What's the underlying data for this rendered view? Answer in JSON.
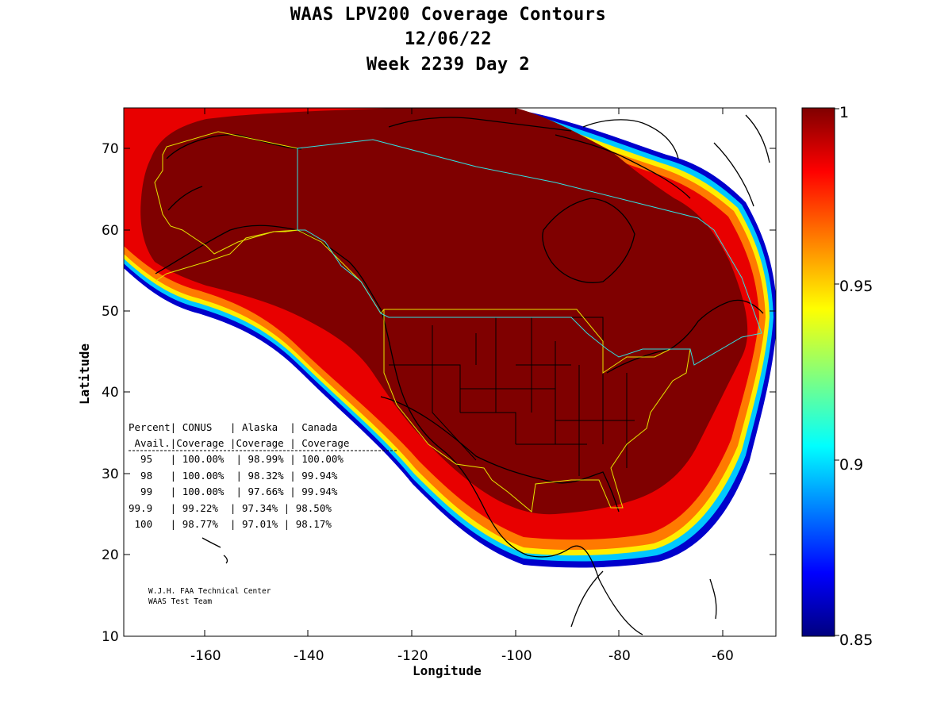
{
  "title": {
    "line1": "WAAS LPV200 Coverage Contours",
    "line2": "12/06/22",
    "line3": "Week 2239 Day 2"
  },
  "axes": {
    "xlabel": "Longitude",
    "ylabel": "Latitude",
    "xticks": [
      "-160",
      "-140",
      "-120",
      "-100",
      "-80",
      "-60"
    ],
    "yticks": [
      "10",
      "20",
      "30",
      "40",
      "50",
      "60",
      "70"
    ]
  },
  "colorbar": {
    "ticks": [
      "1",
      "0.95",
      "0.9",
      "0.85"
    ],
    "range": [
      0.85,
      1
    ],
    "colormap": "jet"
  },
  "table": {
    "header1": "Percent| CONUS   | Alaska  | Canada",
    "header2": " Avail.|Coverage |Coverage | Coverage",
    "rows": [
      "  95   | 100.00%  | 98.99% | 100.00%",
      "  98   | 100.00%  | 98.32% | 99.94%",
      "  99   | 100.00%  | 97.66% | 99.94%",
      "99.9   | 99.22%  | 97.34% | 98.50%",
      " 100   | 98.77%  | 97.01% | 98.17%"
    ]
  },
  "credit": {
    "line1": "W.J.H. FAA Technical Center",
    "line2": "WAAS Test Team"
  },
  "chart_data": {
    "type": "heatmap",
    "title": "WAAS LPV200 Coverage Contours",
    "xlabel": "Longitude",
    "ylabel": "Latitude",
    "xlim": [
      -175,
      -50
    ],
    "ylim": [
      10,
      75
    ],
    "colorbar_range": [
      0.85,
      1
    ],
    "coverage_table": {
      "columns": [
        "Percent Avail.",
        "CONUS Coverage",
        "Alaska Coverage",
        "Canada Coverage"
      ],
      "rows": [
        [
          "95",
          "100.00%",
          "98.99%",
          "100.00%"
        ],
        [
          "98",
          "100.00%",
          "98.32%",
          "99.94%"
        ],
        [
          "99",
          "100.00%",
          "97.66%",
          "99.94%"
        ],
        [
          "99.9",
          "99.22%",
          "97.34%",
          "98.50%"
        ],
        [
          "100",
          "98.77%",
          "97.01%",
          "98.17%"
        ]
      ]
    }
  }
}
